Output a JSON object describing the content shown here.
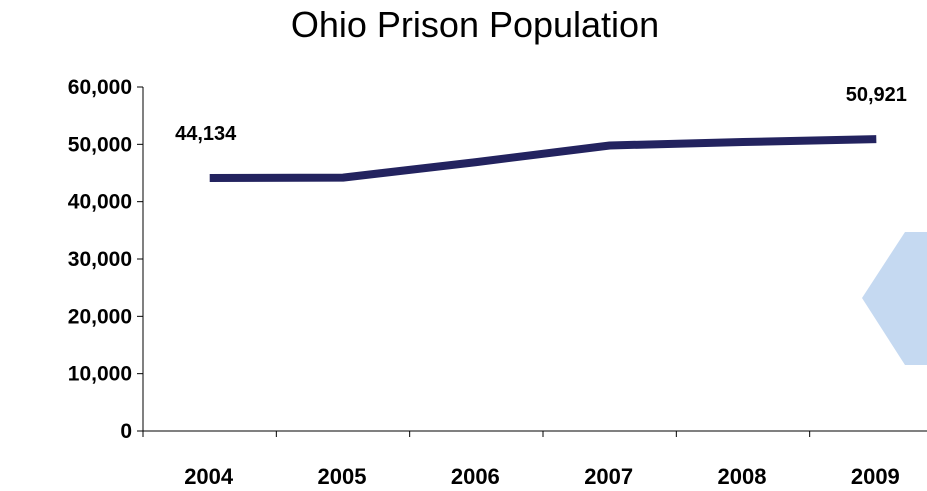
{
  "colors": {
    "line": "#23235f",
    "callout": "#c5d9f1",
    "axis": "#000000"
  },
  "chart_data": {
    "type": "line",
    "title": "Ohio Prison Population",
    "xlabel": "",
    "ylabel": "",
    "categories": [
      "2004",
      "2005",
      "2006",
      "2007",
      "2008",
      "2009"
    ],
    "series": [
      {
        "values": [
          44134,
          44200,
          46900,
          49800,
          50400,
          50921
        ]
      }
    ],
    "ylim": [
      0,
      60000
    ],
    "yticks": [
      0,
      10000,
      20000,
      30000,
      40000,
      50000,
      60000
    ],
    "ytick_labels": [
      "0",
      "10,000",
      "20,000",
      "30,000",
      "40,000",
      "50,000",
      "60,000"
    ],
    "data_labels": [
      {
        "index": 0,
        "text": "44,134"
      },
      {
        "index": 5,
        "text": "50,921"
      }
    ],
    "grid": false,
    "legend": "none"
  }
}
